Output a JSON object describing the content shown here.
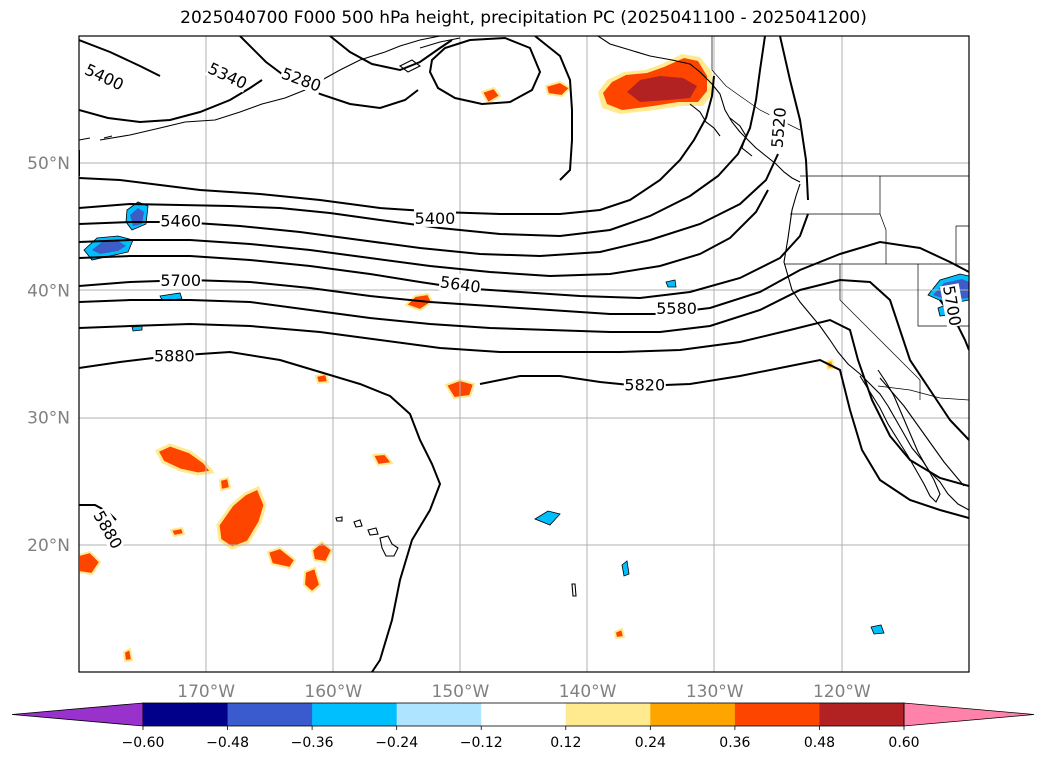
{
  "title": "2025040700 F000 500 hPa height, precipitation PC (2025041100 - 2025041200)",
  "map": {
    "lon_range": [
      -180,
      -110
    ],
    "lat_range": [
      10,
      60
    ],
    "lon_ticks": [
      {
        "lon": -170,
        "label": "170°W"
      },
      {
        "lon": -160,
        "label": "160°W"
      },
      {
        "lon": -150,
        "label": "150°W"
      },
      {
        "lon": -140,
        "label": "140°W"
      },
      {
        "lon": -130,
        "label": "130°W"
      },
      {
        "lon": -120,
        "label": "120°W"
      }
    ],
    "lat_ticks": [
      {
        "lat": 20,
        "label": "20°N"
      },
      {
        "lat": 30,
        "label": "30°N"
      },
      {
        "lat": 40,
        "label": "40°N"
      },
      {
        "lat": 50,
        "label": "50°N"
      }
    ],
    "grid": true,
    "contour_labels": [
      {
        "text": "5400",
        "lon": -178,
        "lat": 56.8,
        "rot": 25
      },
      {
        "text": "5340",
        "lon": -168.3,
        "lat": 56.9,
        "rot": 25
      },
      {
        "text": "5280",
        "lon": -162.5,
        "lat": 56.6,
        "rot": 20
      },
      {
        "text": "5520",
        "lon": -125,
        "lat": 52.8,
        "rot": -85
      },
      {
        "text": "5460",
        "lon": -172,
        "lat": 45.5,
        "rot": 0
      },
      {
        "text": "5400",
        "lon": -152,
        "lat": 45.7,
        "rot": 0
      },
      {
        "text": "5700",
        "lon": -172,
        "lat": 40.8,
        "rot": 0
      },
      {
        "text": "5640",
        "lon": -150,
        "lat": 40.5,
        "rot": 8
      },
      {
        "text": "5580",
        "lon": -133,
        "lat": 38.6,
        "rot": 0
      },
      {
        "text": "5880",
        "lon": -172.5,
        "lat": 34.9,
        "rot": 0
      },
      {
        "text": "5820",
        "lon": -135.5,
        "lat": 32.6,
        "rot": 0
      },
      {
        "text": "5880",
        "lon": -177.7,
        "lat": 21.2,
        "rot": 60
      },
      {
        "text": "5700",
        "lon": -111.3,
        "lat": 38.8,
        "rot": 80
      }
    ],
    "precip_colors": {
      "orange": "#fe4500",
      "orange_light": "#fea500",
      "yellow": "#ffea8f",
      "red": "#b22222",
      "blue": "#3c5cc8",
      "cyan": "#00bfff",
      "light_blue": "#aee4ff"
    }
  },
  "colorbar": {
    "tick_labels": [
      "−0.60",
      "−0.48",
      "−0.36",
      "−0.24",
      "−0.12",
      "0.12",
      "0.24",
      "0.36",
      "0.48",
      "0.60"
    ],
    "colors": [
      "#9932cc",
      "#00008b",
      "#3a5bcd",
      "#00bfff",
      "#aee4ff",
      "#ffffff",
      "#ffea8f",
      "#ffa500",
      "#fe4500",
      "#b22222",
      "#ff82ab"
    ]
  }
}
